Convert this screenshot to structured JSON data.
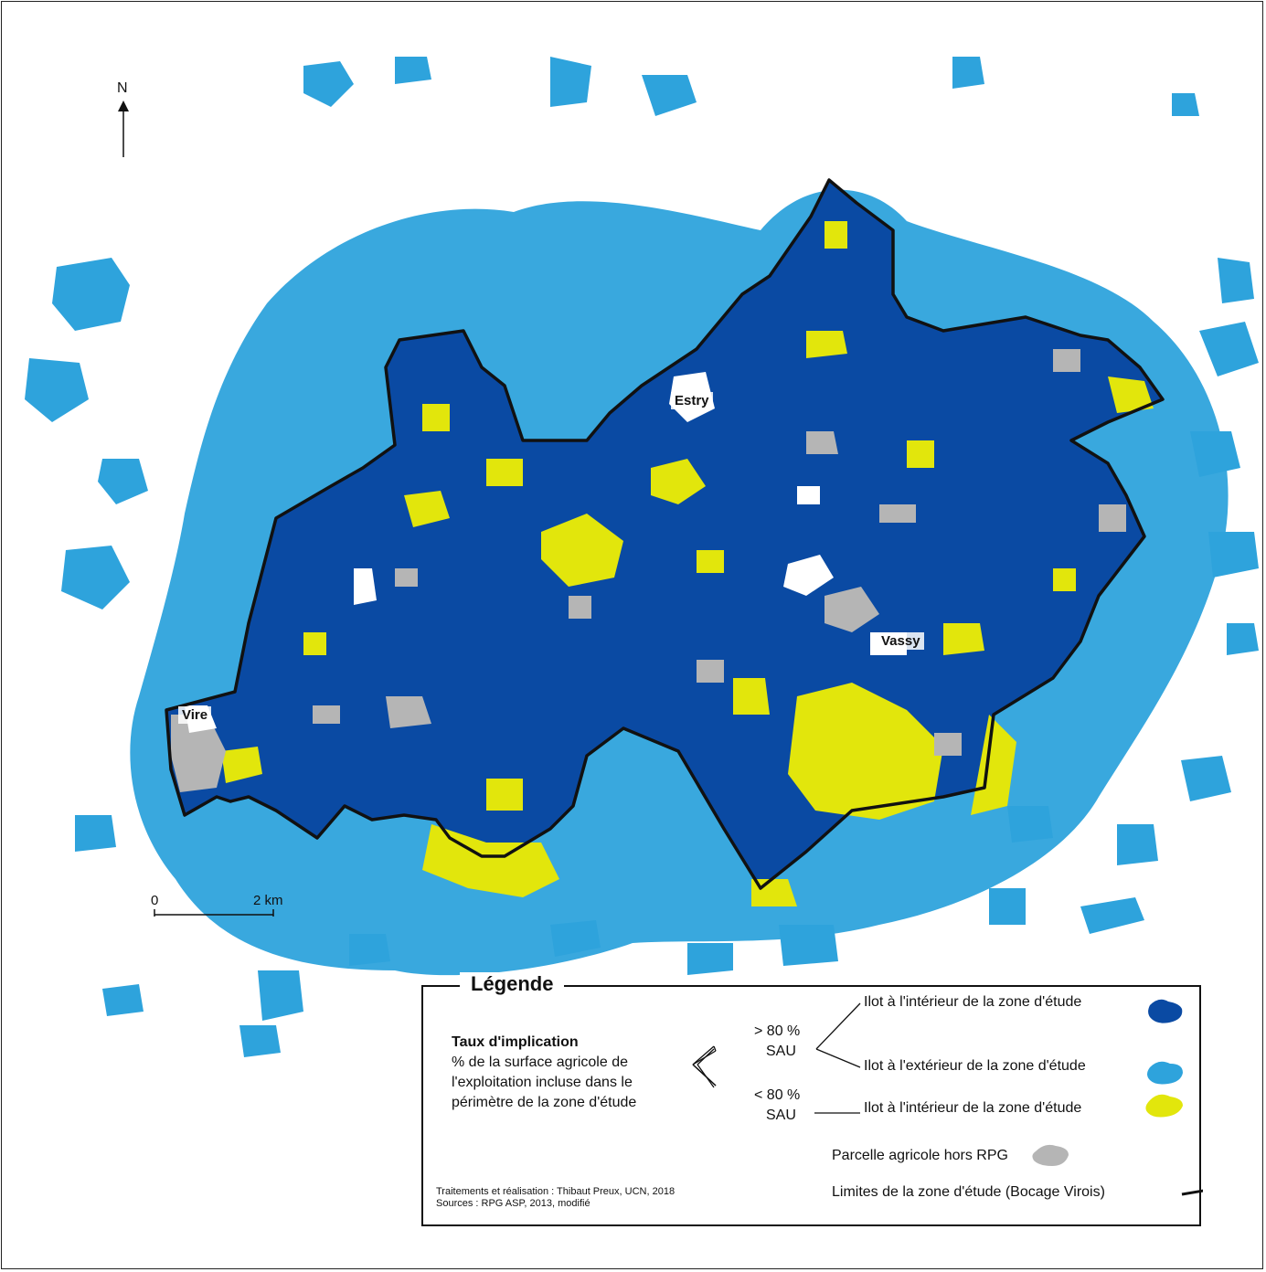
{
  "north_label": "N",
  "places": {
    "estry": "Estry",
    "vassy": "Vassy",
    "vire": "Vire"
  },
  "scale": {
    "start": "0",
    "end": "2 km"
  },
  "colors": {
    "inside_high": "#0a4aa3",
    "outside_high": "#2ea3dc",
    "inside_low": "#e2e60c",
    "non_rpg": "#b5b5b5",
    "boundary": "#111111"
  },
  "legend": {
    "title": "Légende",
    "heading": "Taux d'implication",
    "description": [
      "% de la surface agricole de",
      "l'exploitation incluse dans le",
      "périmètre de la zone d'étude"
    ],
    "threshold_high": [
      "> 80 %",
      "SAU"
    ],
    "threshold_low": [
      "< 80 %",
      "SAU"
    ],
    "items": {
      "inside_high": "Ilot à l'intérieur de la zone d'étude",
      "outside_high": "Ilot à l'extérieur de la zone d'étude",
      "inside_low": "Ilot à l'intérieur de la zone d'étude",
      "non_rpg": "Parcelle agricole hors RPG",
      "boundary": "Limites de la zone d'étude (Bocage Virois)"
    },
    "credits": [
      "Traitements et réalisation : Thibaut Preux, UCN, 2018",
      "Sources : RPG ASP, 2013, modifié"
    ]
  }
}
